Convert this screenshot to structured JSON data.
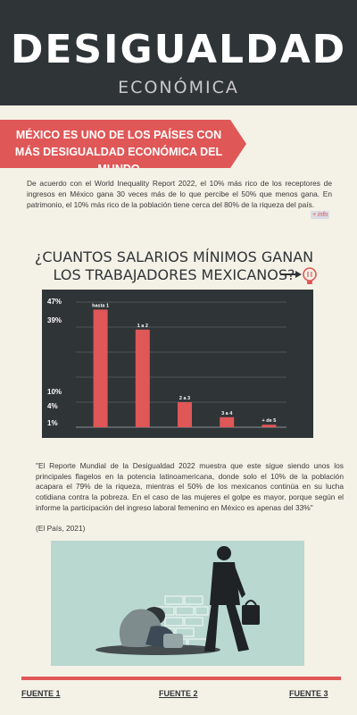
{
  "header": {
    "title": "DESIGUALDAD",
    "subtitle": "ECONÓMICA"
  },
  "ribbon": {
    "text": "MÉXICO ES UNO DE LOS PAÍSES CON MÁS DESIGUALDAD ECONÓMICA DEL MUNDO"
  },
  "intro": {
    "text": "De acuerdo con el World Inequality Report 2022, el 10% más rico de los receptores de ingresos en México gana 30 veces más de lo que percibe el 50% que menos gana. En patrimonio, el 10% más rico de la población tiene cerca del 80% de la riqueza del país.",
    "more_info": "+ info"
  },
  "chart_data": {
    "type": "bar",
    "title": "¿CUANTOS SALARIOS MÍNIMOS GANAN LOS TRABAJADORES MEXICANOS?",
    "categories": [
      "hasta 1",
      "1 a 2",
      "2 a 3",
      "3 a 4",
      "+ de 5"
    ],
    "values": [
      47,
      39,
      10,
      4,
      1
    ],
    "value_labels": [
      "47%",
      "39%",
      "10%",
      "4%",
      "1%"
    ],
    "ylim": [
      0,
      50
    ],
    "grid": true,
    "bar_color": "#e05757",
    "background": "#2f3437"
  },
  "quote": {
    "text": "\"El Reporte Mundial de la Desigualdad 2022 muestra que este sigue siendo unos los principales flagelos en la potencia latinoamericana, donde solo el 10% de la población acapara el 79% de la riqueza, mientras el 50% de los mexicanos continúa en su lucha cotidiana contra la pobreza. En el caso de las mujeres el golpe es mayor, porque según el informe la participación del ingreso laboral femenino en México es apenas del 33%\"",
    "source": "(El País, 2021)"
  },
  "footer": {
    "links": [
      "FUENTE 1",
      "FUENTE 2",
      "FUENTE 3"
    ]
  },
  "colors": {
    "accent": "#e05757",
    "dark": "#2f3437",
    "background": "#f4f1e6"
  }
}
